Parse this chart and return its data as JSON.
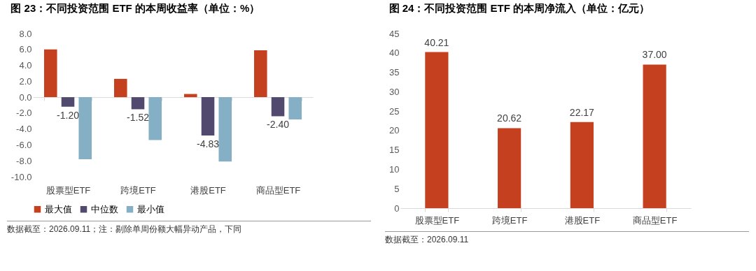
{
  "chart_data": [
    {
      "type": "bar",
      "title": "图 23：不同投资范围 ETF 的本周收益率（单位：%）",
      "categories": [
        "股票型ETF",
        "跨境ETF",
        "港股ETF",
        "商品型ETF"
      ],
      "series": [
        {
          "name": "最大值",
          "color": "#c5401f",
          "values": [
            6.0,
            2.3,
            0.4,
            5.9
          ]
        },
        {
          "name": "中位数",
          "color": "#524a6e",
          "values": [
            -1.2,
            -1.52,
            -4.83,
            -2.4
          ],
          "value_labels": [
            "-1.20",
            "-1.52",
            "-4.83",
            "-2.40"
          ]
        },
        {
          "name": "最小值",
          "color": "#84afc4",
          "values": [
            -7.8,
            -5.4,
            -8.1,
            -2.8
          ]
        }
      ],
      "ylim": [
        -10,
        8
      ],
      "yticks": [
        {
          "value": -10,
          "label": "-10.0"
        },
        {
          "value": -8,
          "label": "-8.0"
        },
        {
          "value": -6,
          "label": "-6.0"
        },
        {
          "value": -4,
          "label": "-4.0"
        },
        {
          "value": -2,
          "label": "-2.0"
        },
        {
          "value": 0,
          "label": "0.0"
        },
        {
          "value": 2,
          "label": "2.0"
        },
        {
          "value": 4,
          "label": "4.0"
        },
        {
          "value": 6,
          "label": "6.0"
        },
        {
          "value": 8,
          "label": "8.0"
        }
      ],
      "legend": "bottom",
      "annotations": [
        "数据截至：2026.09.11；注：剔除单周份额大幅异动产品，下同"
      ]
    },
    {
      "type": "bar",
      "title": "图 24：不同投资范围 ETF 的本周净流入（单位：亿元）",
      "categories": [
        "股票型ETF",
        "跨境ETF",
        "港股ETF",
        "商品型ETF"
      ],
      "values": [
        40.21,
        20.62,
        22.17,
        37.0
      ],
      "value_labels": [
        "40.21",
        "20.62",
        "22.17",
        "37.00"
      ],
      "color": "#c5401f",
      "ylim": [
        0,
        45
      ],
      "yticks": [
        0,
        5,
        10,
        15,
        20,
        25,
        30,
        35,
        40,
        45
      ],
      "annotations": [
        "数据截至：2026.09.11"
      ]
    }
  ]
}
